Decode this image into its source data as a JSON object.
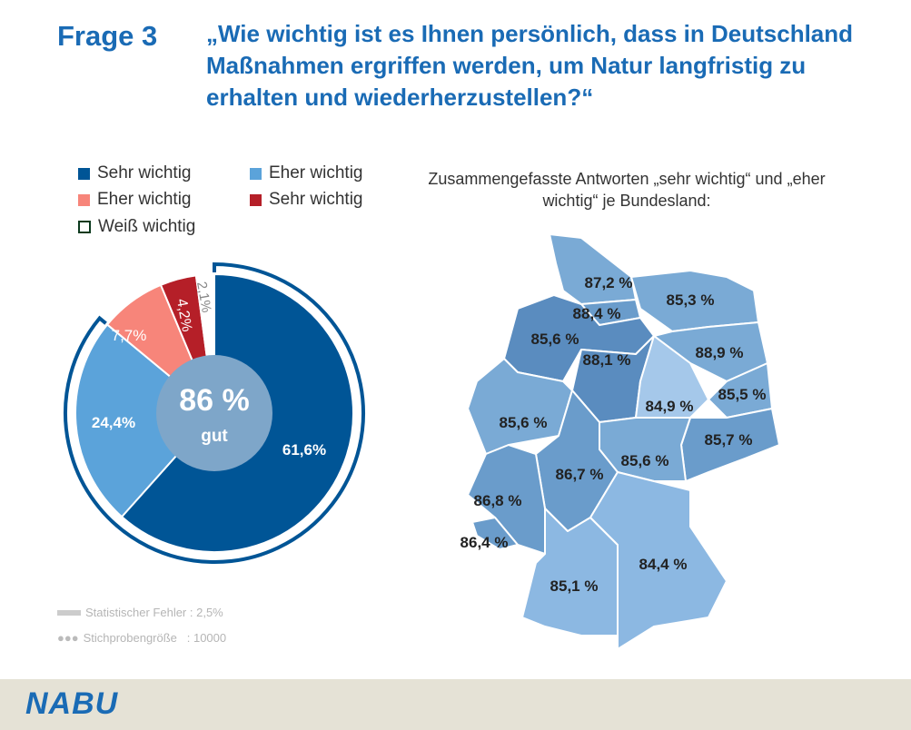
{
  "header": {
    "label": "Frage 3",
    "question": "„Wie wichtig ist es Ihnen persönlich, dass in Deutschland Maßnahmen ergriffen werden, um Natur langfristig zu erhalten und wiederherzustellen?“"
  },
  "chart_data": [
    {
      "type": "pie",
      "legend": [
        {
          "name": "Sehr wichtig",
          "color": "#005596"
        },
        {
          "name": "Eher wichtig",
          "color": "#5ba3da"
        },
        {
          "name": "Eher wichtig",
          "color": "#f7857a"
        },
        {
          "name": "Sehr wichtig",
          "color": "#b51f28"
        },
        {
          "name": "Weiß wichtig",
          "color": "#ffffff"
        }
      ],
      "values": [
        61.6,
        24.4,
        7.7,
        4.2,
        2.1
      ],
      "labels": [
        "61,6%",
        "24,4%",
        "7,7%",
        "4,2%",
        "2,1%"
      ],
      "center": {
        "value": "86 %",
        "label": "gut"
      },
      "highlight_ring_percent": 86
    },
    {
      "type": "map",
      "title": "Zusammengefasste Antworten „sehr wichtig“ und „eher wichtig“ je Bundesland:",
      "regions": [
        {
          "label": "87,2 %",
          "value": 87.2
        },
        {
          "label": "85,3 %",
          "value": 85.3
        },
        {
          "label": "88,4 %",
          "value": 88.4
        },
        {
          "label": "85,6 %",
          "value": 85.6
        },
        {
          "label": "88,1 %",
          "value": 88.1
        },
        {
          "label": "88,9 %",
          "value": 88.9
        },
        {
          "label": "85,5 %",
          "value": 85.5
        },
        {
          "label": "84,9 %",
          "value": 84.9
        },
        {
          "label": "85,7 %",
          "value": 85.7
        },
        {
          "label": "85,6 %",
          "value": 85.6
        },
        {
          "label": "85,6 %",
          "value": 85.6
        },
        {
          "label": "86,7 %",
          "value": 86.7
        },
        {
          "label": "86,8 %",
          "value": 86.8
        },
        {
          "label": "86,4 %",
          "value": 86.4
        },
        {
          "label": "85,1 %",
          "value": 85.1
        },
        {
          "label": "84,4 %",
          "value": 84.4
        }
      ]
    }
  ],
  "footer_stats": {
    "error": "Statistischer Fehler : 2,5%",
    "sample": "Stichprobengröße   : 10000"
  },
  "brand": "NABU"
}
